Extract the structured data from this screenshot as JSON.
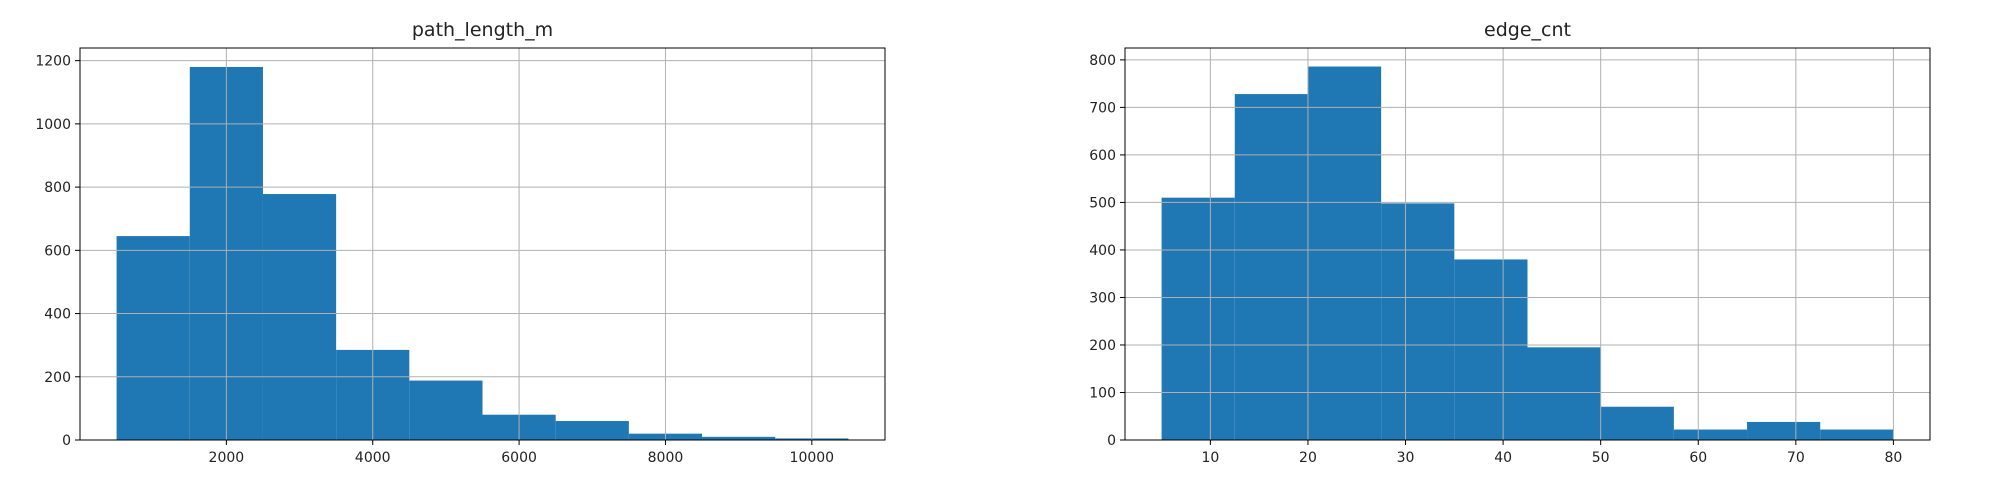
{
  "colors": {
    "bar": "#1f77b4",
    "grid": "#b0b0b0",
    "axis": "#000000",
    "text": "#222222"
  },
  "chart_data": [
    {
      "type": "bar",
      "title": "path_length_m",
      "xlabel": "",
      "ylabel": "",
      "grid": true,
      "bin_edges": [
        500,
        1500,
        2500,
        3500,
        4500,
        5500,
        6500,
        7500,
        8500,
        9500,
        10500
      ],
      "values": [
        645,
        1180,
        778,
        285,
        188,
        80,
        60,
        20,
        10,
        5
      ],
      "xlim": [
        0,
        11000
      ],
      "ylim": [
        0,
        1240
      ],
      "xticks": [
        2000,
        4000,
        6000,
        8000,
        10000
      ],
      "xtick_labels": [
        "2000",
        "4000",
        "6000",
        "8000",
        "10000"
      ],
      "yticks": [
        0,
        200,
        400,
        600,
        800,
        1000,
        1200
      ],
      "ytick_labels": [
        "0",
        "200",
        "400",
        "600",
        "800",
        "1000",
        "1200"
      ]
    },
    {
      "type": "bar",
      "title": "edge_cnt",
      "xlabel": "",
      "ylabel": "",
      "grid": true,
      "bin_edges": [
        5,
        12.5,
        20,
        27.5,
        35,
        42.5,
        50,
        57.5,
        65,
        72.5,
        80
      ],
      "values": [
        510,
        728,
        786,
        498,
        380,
        195,
        70,
        22,
        38,
        22
      ],
      "xlim": [
        1.25,
        83.75
      ],
      "ylim": [
        0,
        825
      ],
      "xticks": [
        10,
        20,
        30,
        40,
        50,
        60,
        70,
        80
      ],
      "xtick_labels": [
        "10",
        "20",
        "30",
        "40",
        "50",
        "60",
        "70",
        "80"
      ],
      "yticks": [
        0,
        100,
        200,
        300,
        400,
        500,
        600,
        700,
        800
      ],
      "ytick_labels": [
        "0",
        "100",
        "200",
        "300",
        "400",
        "500",
        "600",
        "700",
        "800"
      ]
    }
  ]
}
